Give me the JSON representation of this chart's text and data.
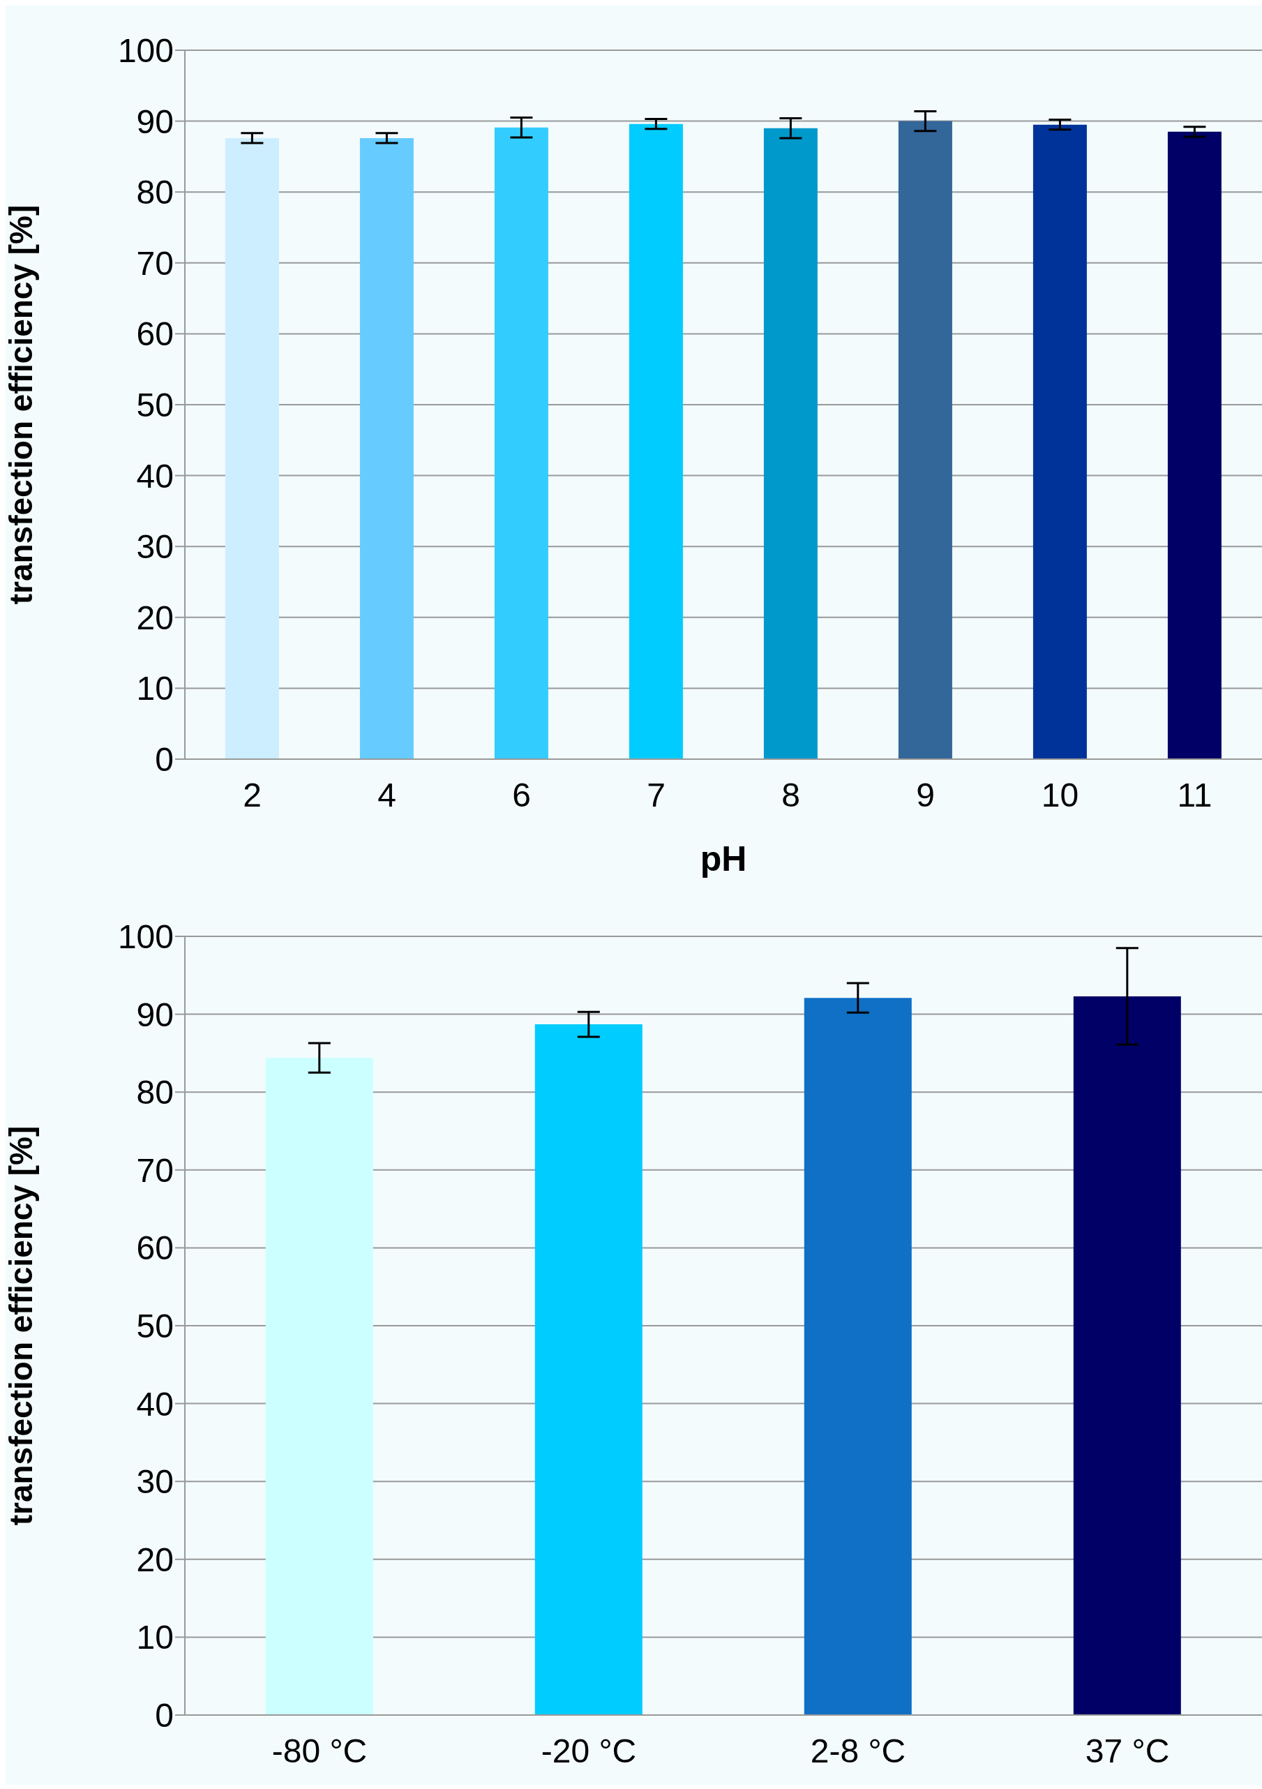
{
  "chart_data": [
    {
      "type": "bar",
      "xlabel": "pH",
      "ylabel": "transfection efficiency [%]",
      "categories": [
        "2",
        "4",
        "6",
        "7",
        "8",
        "9",
        "10",
        "11"
      ],
      "values": [
        87.6,
        87.6,
        89.1,
        89.6,
        89.0,
        90.0,
        89.5,
        88.5
      ],
      "errors": [
        0.7,
        0.7,
        1.4,
        0.7,
        1.4,
        1.4,
        0.7,
        0.7
      ],
      "colors": [
        "#cceeff",
        "#66ccff",
        "#33ccff",
        "#00ccff",
        "#0099cc",
        "#336699",
        "#003399",
        "#000066"
      ],
      "ylim": [
        0,
        100
      ],
      "yticks": [
        0,
        10,
        20,
        30,
        40,
        50,
        60,
        70,
        80,
        90,
        100
      ],
      "grid": "y"
    },
    {
      "type": "bar",
      "ylabel": "transfection efficiency [%]",
      "categories": [
        "-80 °C",
        "-20 °C",
        "2-8 °C",
        "37 °C"
      ],
      "values": [
        84.4,
        88.7,
        92.1,
        92.3
      ],
      "errors": [
        1.9,
        1.6,
        1.9,
        6.2
      ],
      "colors": [
        "#ccffff",
        "#00ccff",
        "#0f70c6",
        "#000066"
      ],
      "ylim": [
        0,
        100
      ],
      "yticks": [
        0,
        10,
        20,
        30,
        40,
        50,
        60,
        70,
        80,
        90,
        100
      ],
      "grid": "y"
    }
  ]
}
